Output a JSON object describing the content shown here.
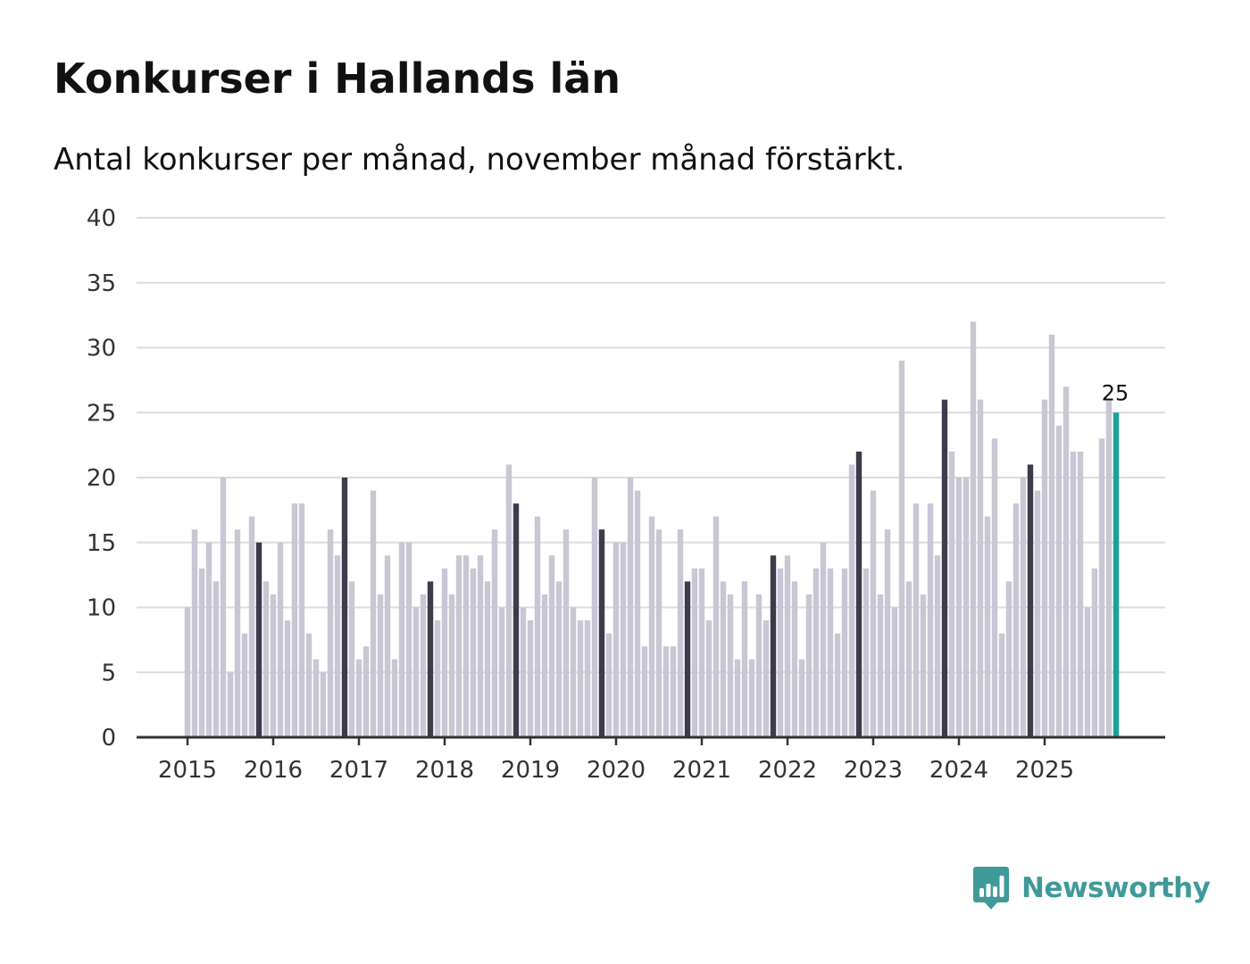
{
  "header": {
    "title": "Konkurser i Hallands län",
    "subtitle": "Antal konkurser per månad, november månad förstärkt."
  },
  "brand": {
    "name": "Newsworthy",
    "icon": "bar-chart-speech-bubble-icon",
    "color": "#3f9a99"
  },
  "chart_data": {
    "type": "bar",
    "title": "Konkurser i Hallands län",
    "subtitle": "Antal konkurser per månad, november månad förstärkt.",
    "xlabel": "",
    "ylabel": "",
    "ylim": [
      0,
      40
    ],
    "yticks": [
      0,
      5,
      10,
      15,
      20,
      25,
      30,
      35,
      40
    ],
    "year_labels": [
      "2015",
      "2016",
      "2017",
      "2018",
      "2019",
      "2020",
      "2021",
      "2022",
      "2023",
      "2024",
      "2025"
    ],
    "start": "2015-01",
    "end": "2025-11",
    "highlight_month": "November",
    "grid": true,
    "legend": "none",
    "colors": {
      "default": "#c8c7d4",
      "november": "#3d3c4c",
      "latest": "#1aa39a",
      "grid": "#dcdcdc",
      "axis": "#333333"
    },
    "latest_label": "25",
    "series": [
      {
        "values": [
          10,
          16,
          13,
          15,
          12,
          20,
          5,
          16,
          8,
          17,
          15,
          12,
          11,
          15,
          9,
          18,
          18,
          8,
          6,
          5,
          16,
          14,
          20,
          12,
          6,
          7,
          19,
          11,
          14,
          6,
          15,
          15,
          10,
          11,
          12,
          9,
          13,
          11,
          14,
          14,
          13,
          14,
          12,
          16,
          10,
          21,
          18,
          10,
          9,
          17,
          11,
          14,
          12,
          16,
          10,
          9,
          9,
          20,
          16,
          8,
          15,
          15,
          20,
          19,
          7,
          17,
          16,
          7,
          7,
          16,
          12,
          13,
          13,
          9,
          17,
          12,
          11,
          6,
          12,
          6,
          11,
          9,
          14,
          13,
          14,
          12,
          6,
          11,
          13,
          15,
          13,
          8,
          13,
          21,
          22,
          13,
          19,
          11,
          16,
          10,
          29,
          12,
          18,
          11,
          18,
          14,
          26,
          22,
          20,
          20,
          32,
          26,
          17,
          23,
          8,
          12,
          18,
          20,
          21,
          19,
          26,
          31,
          24,
          27,
          22,
          22,
          10,
          13,
          23,
          26,
          25
        ]
      }
    ]
  }
}
